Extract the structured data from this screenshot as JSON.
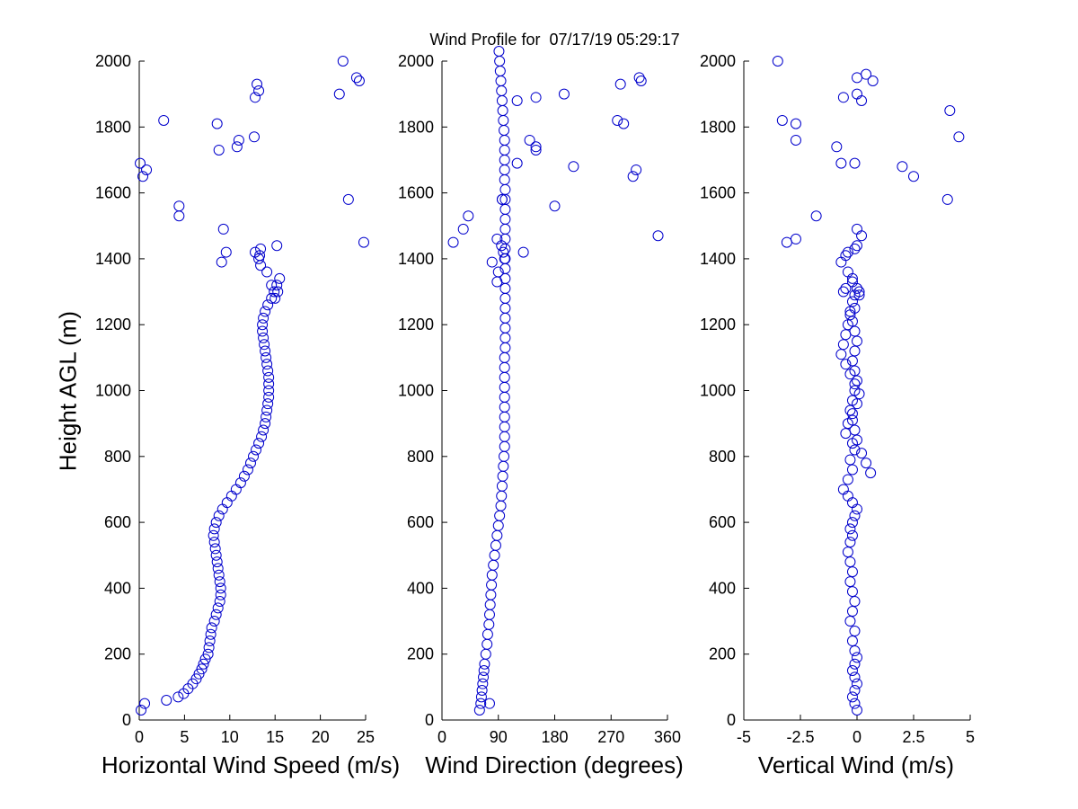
{
  "figure": {
    "title": "Wind Profile for  07/17/19 05:29:17",
    "ylabel": "Height AGL (m)",
    "marker_color": "#0000cc"
  },
  "chart_data": [
    {
      "type": "scatter",
      "name": "horizontal-wind-speed",
      "xlabel": "Horizontal Wind Speed (m/s)",
      "ylabel": "Height AGL (m)",
      "xlim": [
        0,
        25
      ],
      "ylim": [
        0,
        2000
      ],
      "xticks": [
        0,
        5,
        10,
        15,
        20,
        25
      ],
      "xtick_labels": [
        "0",
        "5",
        "10",
        "15",
        "20",
        "25"
      ],
      "yticks": [
        0,
        200,
        400,
        600,
        800,
        1000,
        1200,
        1400,
        1600,
        1800,
        2000
      ],
      "ytick_labels": [
        "0",
        "200",
        "400",
        "600",
        "800",
        "1000",
        "1200",
        "1400",
        "1600",
        "1800",
        "2000"
      ],
      "series": [
        {
          "name": "horizontal wind speed",
          "marker": "open-circle",
          "x": [
            0.2,
            0.6,
            3.0,
            4.3,
            4.9,
            5.4,
            5.9,
            6.3,
            6.6,
            6.9,
            7.1,
            7.3,
            7.6,
            7.7,
            7.8,
            7.9,
            8.0,
            8.3,
            8.5,
            8.7,
            8.9,
            9.0,
            9.0,
            8.9,
            8.8,
            8.7,
            8.6,
            8.5,
            8.4,
            8.3,
            8.2,
            8.3,
            8.5,
            8.8,
            9.2,
            9.7,
            10.2,
            10.7,
            11.2,
            11.6,
            12.0,
            12.3,
            12.6,
            12.9,
            13.2,
            13.5,
            13.7,
            13.9,
            14.0,
            14.1,
            14.2,
            14.3,
            14.3,
            14.3,
            14.3,
            14.2,
            14.1,
            14.0,
            13.9,
            13.8,
            13.7,
            13.6,
            13.6,
            13.7,
            13.9,
            14.2,
            14.6,
            14.9,
            15.2,
            15.5,
            15.3,
            15.0,
            14.6,
            14.1,
            13.4,
            13.2,
            12.8,
            0.1,
            0.4,
            0.8,
            4.4,
            4.4,
            9.3,
            9.6,
            9.1,
            13.3,
            13.4,
            15.2,
            24.8,
            23.1,
            2.7,
            8.6,
            8.8,
            11.0,
            10.8,
            12.7,
            13.0,
            12.8,
            13.2,
            22.1,
            22.5,
            24.0,
            24.3
          ],
          "y": [
            30,
            50,
            60,
            70,
            80,
            95,
            110,
            125,
            140,
            155,
            170,
            185,
            200,
            220,
            240,
            260,
            280,
            300,
            320,
            340,
            360,
            380,
            400,
            420,
            440,
            460,
            480,
            500,
            520,
            540,
            560,
            580,
            600,
            620,
            640,
            660,
            680,
            700,
            720,
            740,
            760,
            780,
            800,
            820,
            840,
            860,
            880,
            900,
            920,
            940,
            960,
            980,
            1000,
            1020,
            1040,
            1060,
            1080,
            1100,
            1120,
            1140,
            1160,
            1180,
            1200,
            1220,
            1240,
            1260,
            1280,
            1300,
            1320,
            1340,
            1300,
            1280,
            1320,
            1360,
            1380,
            1400,
            1420,
            1690,
            1650,
            1670,
            1530,
            1560,
            1490,
            1420,
            1390,
            1410,
            1430,
            1440,
            1450,
            1580,
            1820,
            1810,
            1730,
            1760,
            1740,
            1770,
            1930,
            1890,
            1910,
            1900,
            2000,
            1950,
            1940
          ]
        }
      ]
    },
    {
      "type": "scatter",
      "name": "wind-direction",
      "xlabel": "Wind Direction (degrees)",
      "ylabel": "",
      "xlim": [
        0,
        360
      ],
      "ylim": [
        0,
        2000
      ],
      "xticks": [
        0,
        90,
        180,
        270,
        360
      ],
      "xtick_labels": [
        "0",
        "90",
        "180",
        "270",
        "360"
      ],
      "yticks": [
        0,
        200,
        400,
        600,
        800,
        1000,
        1200,
        1400,
        1600,
        1800,
        2000
      ],
      "ytick_labels": [
        "0",
        "200",
        "400",
        "600",
        "800",
        "1000",
        "1200",
        "1400",
        "1600",
        "1800",
        "2000"
      ],
      "series": [
        {
          "name": "wind direction",
          "marker": "open-circle",
          "x": [
            60,
            62,
            76,
            63,
            64,
            65,
            66,
            67,
            68,
            70,
            72,
            73,
            75,
            76,
            77,
            78,
            79,
            80,
            82,
            84,
            86,
            88,
            90,
            92,
            94,
            95,
            96,
            97,
            98,
            99,
            100,
            100,
            100,
            100,
            100,
            100,
            100,
            100,
            100,
            100,
            101,
            101,
            101,
            101,
            101,
            101,
            101,
            101,
            101,
            101,
            101,
            101,
            101,
            101,
            101,
            101,
            101,
            100,
            100,
            100,
            100,
            100,
            99,
            98,
            97,
            96,
            95,
            94,
            93,
            92,
            91,
            90,
            88,
            80,
            150,
            42,
            34,
            18,
            345,
            98,
            130,
            88,
            95,
            96,
            210,
            180,
            120,
            310,
            305,
            280,
            290,
            140,
            150,
            120,
            150,
            195,
            285,
            315,
            318,
            100,
            96
          ],
          "y": [
            30,
            50,
            50,
            70,
            90,
            110,
            130,
            150,
            170,
            200,
            230,
            260,
            290,
            320,
            350,
            380,
            410,
            440,
            470,
            500,
            530,
            560,
            590,
            620,
            650,
            680,
            710,
            740,
            770,
            800,
            830,
            860,
            890,
            920,
            950,
            980,
            1010,
            1040,
            1070,
            1100,
            1130,
            1160,
            1190,
            1220,
            1250,
            1280,
            1310,
            1340,
            1370,
            1400,
            1430,
            1460,
            1490,
            1520,
            1550,
            1580,
            1610,
            1640,
            1670,
            1700,
            1730,
            1760,
            1790,
            1820,
            1850,
            1880,
            1910,
            1940,
            1970,
            2000,
            2030,
            1360,
            1330,
            1390,
            1740,
            1530,
            1490,
            1450,
            1470,
            1420,
            1420,
            1460,
            1440,
            1580,
            1680,
            1560,
            1690,
            1670,
            1650,
            1820,
            1810,
            1760,
            1730,
            1880,
            1890,
            1900,
            1930,
            1950,
            1940,
            1400,
            1580
          ]
        }
      ]
    },
    {
      "type": "scatter",
      "name": "vertical-wind",
      "xlabel": "Vertical Wind (m/s)",
      "ylabel": "",
      "xlim": [
        -5,
        5
      ],
      "ylim": [
        0,
        2000
      ],
      "xticks": [
        -5,
        -2.5,
        0,
        2.5,
        5
      ],
      "xtick_labels": [
        "-5",
        "-2.5",
        "0",
        "2.5",
        "5"
      ],
      "yticks": [
        0,
        200,
        400,
        600,
        800,
        1000,
        1200,
        1400,
        1600,
        1800,
        2000
      ],
      "ytick_labels": [
        "0",
        "200",
        "400",
        "600",
        "800",
        "1000",
        "1200",
        "1400",
        "1600",
        "1800",
        "2000"
      ],
      "series": [
        {
          "name": "vertical wind",
          "marker": "open-circle",
          "x": [
            0.0,
            -0.1,
            -0.2,
            -0.1,
            0.0,
            -0.1,
            -0.2,
            -0.1,
            0.0,
            -0.1,
            -0.2,
            -0.1,
            -0.3,
            -0.2,
            -0.1,
            -0.2,
            -0.3,
            -0.2,
            -0.3,
            -0.4,
            -0.3,
            -0.2,
            -0.3,
            -0.2,
            -0.1,
            0.0,
            -0.2,
            -0.4,
            -0.6,
            -0.4,
            -0.2,
            -0.3,
            -0.1,
            0.0,
            -0.1,
            -0.2,
            -0.3,
            -0.2,
            -0.1,
            0.0,
            -0.1,
            -0.2,
            -0.1,
            0.0,
            -0.1,
            -0.2,
            -0.3,
            -0.2,
            -0.1,
            0.0,
            -0.2,
            -0.4,
            -0.2,
            0.1,
            0.1,
            -0.1,
            -0.3,
            -0.4,
            -0.5,
            -0.6,
            -0.7,
            -0.5,
            -0.3,
            -0.1,
            0.1,
            0.0,
            -0.2,
            -0.4,
            -0.5,
            -0.2,
            0.2,
            0.4,
            0.6,
            -0.5,
            -0.6,
            -0.7,
            -0.4,
            0.0,
            0.2,
            -2.7,
            -3.1,
            -1.8,
            -0.7,
            -0.5,
            -0.1,
            0.0,
            -0.1,
            -3.3,
            -2.7,
            -2.7,
            -0.9,
            -0.6,
            0.0,
            0.2,
            0.0,
            0.7,
            0.4,
            -3.5,
            2.0,
            2.5,
            4.0,
            4.1,
            4.5
          ],
          "y": [
            30,
            50,
            70,
            90,
            110,
            130,
            150,
            170,
            190,
            210,
            240,
            270,
            300,
            330,
            360,
            390,
            420,
            450,
            480,
            510,
            540,
            560,
            580,
            600,
            620,
            640,
            660,
            680,
            700,
            730,
            760,
            790,
            820,
            850,
            880,
            910,
            940,
            970,
            1000,
            1030,
            1060,
            1090,
            1120,
            1150,
            1180,
            1210,
            1240,
            1270,
            1290,
            1310,
            1340,
            1360,
            1330,
            1300,
            1290,
            1250,
            1230,
            1200,
            1170,
            1140,
            1110,
            1080,
            1050,
            1020,
            990,
            960,
            930,
            900,
            870,
            840,
            810,
            780,
            750,
            1310,
            1300,
            1390,
            1420,
            1490,
            1470,
            1460,
            1450,
            1530,
            1690,
            1410,
            1430,
            1440,
            1690,
            1820,
            1810,
            1760,
            1740,
            1890,
            1900,
            1880,
            1950,
            1940,
            1960,
            2000,
            1680,
            1650,
            1580,
            1850,
            1770
          ]
        }
      ]
    }
  ]
}
